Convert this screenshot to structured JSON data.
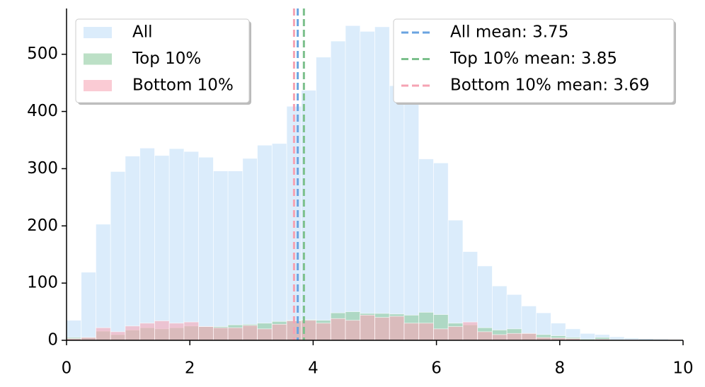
{
  "chart_data": {
    "type": "histogram",
    "bins": [
      0,
      0.2381,
      0.4762,
      0.7143,
      0.9524,
      1.1905,
      1.4286,
      1.6667,
      1.9048,
      2.1429,
      2.381,
      2.619,
      2.8571,
      3.0952,
      3.3333,
      3.5714,
      3.8095,
      4.0476,
      4.2857,
      4.5238,
      4.7619,
      5,
      5.2381,
      5.4762,
      5.7143,
      5.9524,
      6.1905,
      6.4286,
      6.6667,
      6.9048,
      7.1429,
      7.381,
      7.619,
      7.8571,
      8.0952,
      8.3333,
      8.5714,
      8.8095,
      9.0476,
      9.2857,
      9.5238,
      9.7619,
      10
    ],
    "series": [
      {
        "name": "All",
        "color": "#cfe5f9",
        "values": [
          35,
          119,
          203,
          295,
          322,
          336,
          323,
          335,
          330,
          320,
          296,
          296,
          318,
          341,
          344,
          409,
          437,
          495,
          523,
          550,
          540,
          548,
          445,
          415,
          317,
          310,
          210,
          155,
          130,
          95,
          80,
          60,
          48,
          30,
          20,
          12,
          10,
          6,
          4,
          3,
          2,
          1
        ]
      },
      {
        "name": "Top 10%",
        "color": "#8fcca0",
        "values": [
          5,
          5,
          16,
          10,
          18,
          22,
          20,
          22,
          25,
          24,
          24,
          27,
          28,
          30,
          33,
          35,
          36,
          35,
          48,
          50,
          47,
          47,
          46,
          44,
          49,
          45,
          30,
          27,
          22,
          18,
          20,
          12,
          10,
          8,
          5,
          2,
          5,
          1,
          0,
          0,
          0,
          0
        ]
      },
      {
        "name": "Bottom 10%",
        "color": "#f7a8b8",
        "values": [
          3,
          5,
          22,
          15,
          25,
          30,
          34,
          30,
          32,
          24,
          22,
          22,
          26,
          20,
          28,
          34,
          35,
          30,
          38,
          35,
          44,
          40,
          42,
          30,
          30,
          20,
          24,
          32,
          15,
          10,
          12,
          12,
          5,
          4,
          3,
          0,
          2,
          0,
          1,
          0,
          0,
          0
        ]
      }
    ],
    "mean_lines": [
      {
        "name": "All mean: 3.75",
        "value": 3.75,
        "color": "#6aa3e0"
      },
      {
        "name": "Top 10% mean: 3.85",
        "value": 3.85,
        "color": "#7cc08c"
      },
      {
        "name": "Bottom 10% mean: 3.69",
        "value": 3.69,
        "color": "#f5a3b3"
      }
    ],
    "xlim": [
      0,
      10
    ],
    "xticks": [
      0,
      2,
      4,
      6,
      8,
      10
    ],
    "ylim": [
      0,
      580
    ],
    "yticks": [
      0,
      100,
      200,
      300,
      400,
      500
    ]
  }
}
